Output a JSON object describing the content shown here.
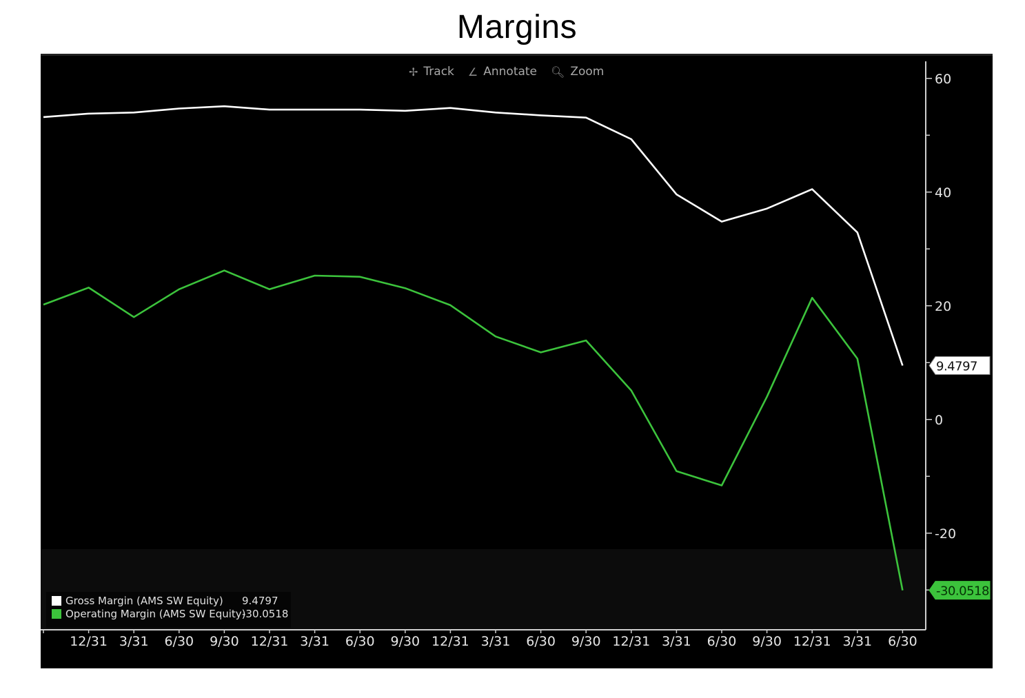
{
  "title": "Margins",
  "toolbar": {
    "track": {
      "label": "Track",
      "icon": "crosshair-icon"
    },
    "annotate": {
      "label": "Annotate",
      "icon": "pencil-icon"
    },
    "zoom": {
      "label": "Zoom",
      "icon": "magnifier-icon"
    }
  },
  "chart_data": {
    "type": "line",
    "categories": [
      "",
      "12/31",
      "3/31",
      "6/30",
      "9/30",
      "12/31",
      "3/31",
      "6/30",
      "9/30",
      "12/31",
      "3/31",
      "6/30",
      "9/30",
      "12/31",
      "3/31",
      "6/30",
      "9/30",
      "12/31",
      "3/31",
      "6/30"
    ],
    "ylim": [
      -37,
      63
    ],
    "y_ticks": [
      60,
      40,
      20,
      0,
      -20
    ],
    "y_axis_position": "right",
    "grid": false,
    "background": "#000000",
    "legend_position": "bottom-left",
    "series": [
      {
        "name": "Gross Margin (AMS SW Equity)",
        "last_value": "9.4797",
        "color": "#ffffff",
        "values": [
          53.2,
          53.8,
          54.0,
          54.7,
          55.1,
          54.5,
          54.5,
          54.5,
          54.3,
          54.8,
          54.0,
          53.5,
          53.1,
          49.3,
          39.6,
          34.8,
          37.1,
          40.5,
          32.9,
          9.4797
        ]
      },
      {
        "name": "Operating Margin (AMS SW Equity)",
        "last_value": "-30.0518",
        "color": "#3cc33c",
        "values": [
          20.2,
          23.2,
          18.0,
          22.9,
          26.2,
          22.9,
          25.3,
          25.1,
          23.1,
          20.1,
          14.6,
          11.8,
          13.9,
          5.1,
          -9.1,
          -11.6,
          4.0,
          21.4,
          10.7,
          -30.0518
        ]
      }
    ]
  }
}
